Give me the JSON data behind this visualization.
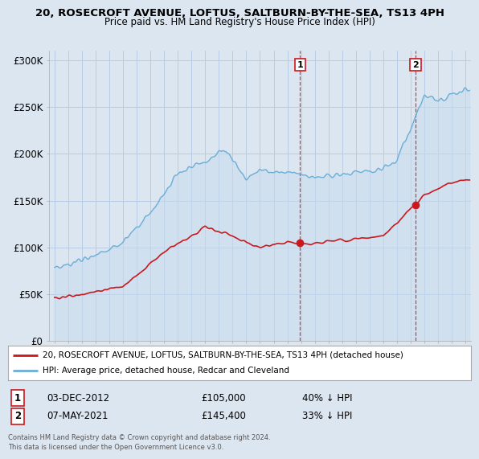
{
  "title": "20, ROSECROFT AVENUE, LOFTUS, SALTBURN-BY-THE-SEA, TS13 4PH",
  "subtitle": "Price paid vs. HM Land Registry's House Price Index (HPI)",
  "ylabel_ticks": [
    "£0",
    "£50K",
    "£100K",
    "£150K",
    "£200K",
    "£250K",
    "£300K"
  ],
  "ytick_values": [
    0,
    50000,
    100000,
    150000,
    200000,
    250000,
    300000
  ],
  "ylim": [
    0,
    310000
  ],
  "xlim_start": 1994.6,
  "xlim_end": 2025.4,
  "sale1_date_x": 2012.92,
  "sale1_price": 105000,
  "sale1_label": "03-DEC-2012",
  "sale1_amount": "£105,000",
  "sale1_pct": "40% ↓ HPI",
  "sale2_date_x": 2021.36,
  "sale2_price": 145400,
  "sale2_label": "07-MAY-2021",
  "sale2_amount": "£145,400",
  "sale2_pct": "33% ↓ HPI",
  "hpi_color": "#6baed6",
  "hpi_fill_color": "#c6dbef",
  "price_color": "#cb181d",
  "background_color": "#dce6f1",
  "plot_bg_color": "#dce6f1",
  "grid_color": "#b8cce4",
  "annotation_box_color": "#cb181d",
  "legend_line1": "20, ROSECROFT AVENUE, LOFTUS, SALTBURN-BY-THE-SEA, TS13 4PH (detached house)",
  "legend_line2": "HPI: Average price, detached house, Redcar and Cleveland",
  "footer": "Contains HM Land Registry data © Crown copyright and database right 2024.\nThis data is licensed under the Open Government Licence v3.0."
}
